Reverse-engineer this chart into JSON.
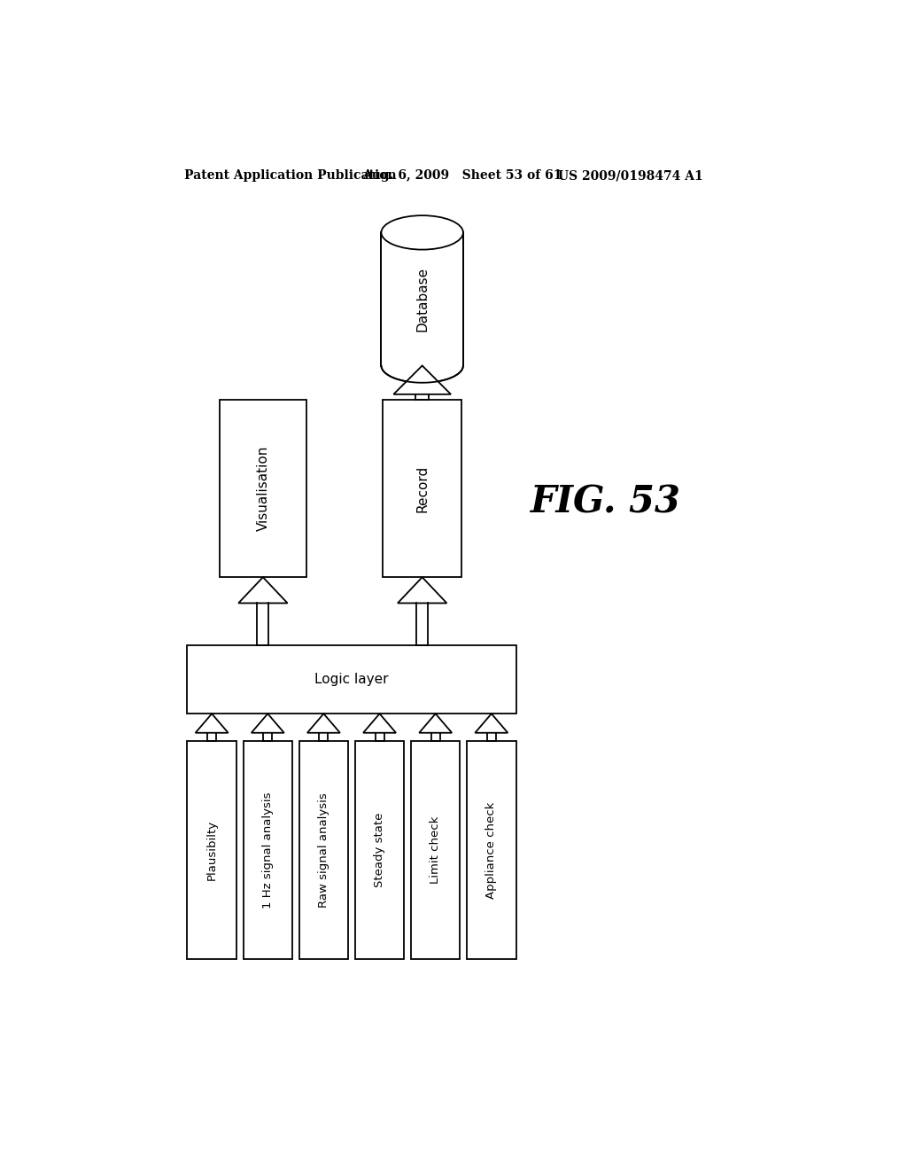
{
  "header_left": "Patent Application Publication",
  "header_mid": "Aug. 6, 2009   Sheet 53 of 61",
  "header_right": "US 2009/0198474 A1",
  "bottom_boxes": [
    "Plausibilty",
    "1 Hz signal analysis",
    "Raw signal analysis",
    "Steady state",
    "Limit check",
    "Appliance check"
  ],
  "logic_label": "Logic layer",
  "vis_label": "Visualisation",
  "record_label": "Record",
  "db_label": "Database",
  "fig_label": "FIG. 53",
  "bg_color": "#ffffff",
  "box_color": "#ffffff",
  "box_edge": "#000000",
  "text_color": "#000000",
  "arrow_color": "#000000",
  "lw": 1.3
}
